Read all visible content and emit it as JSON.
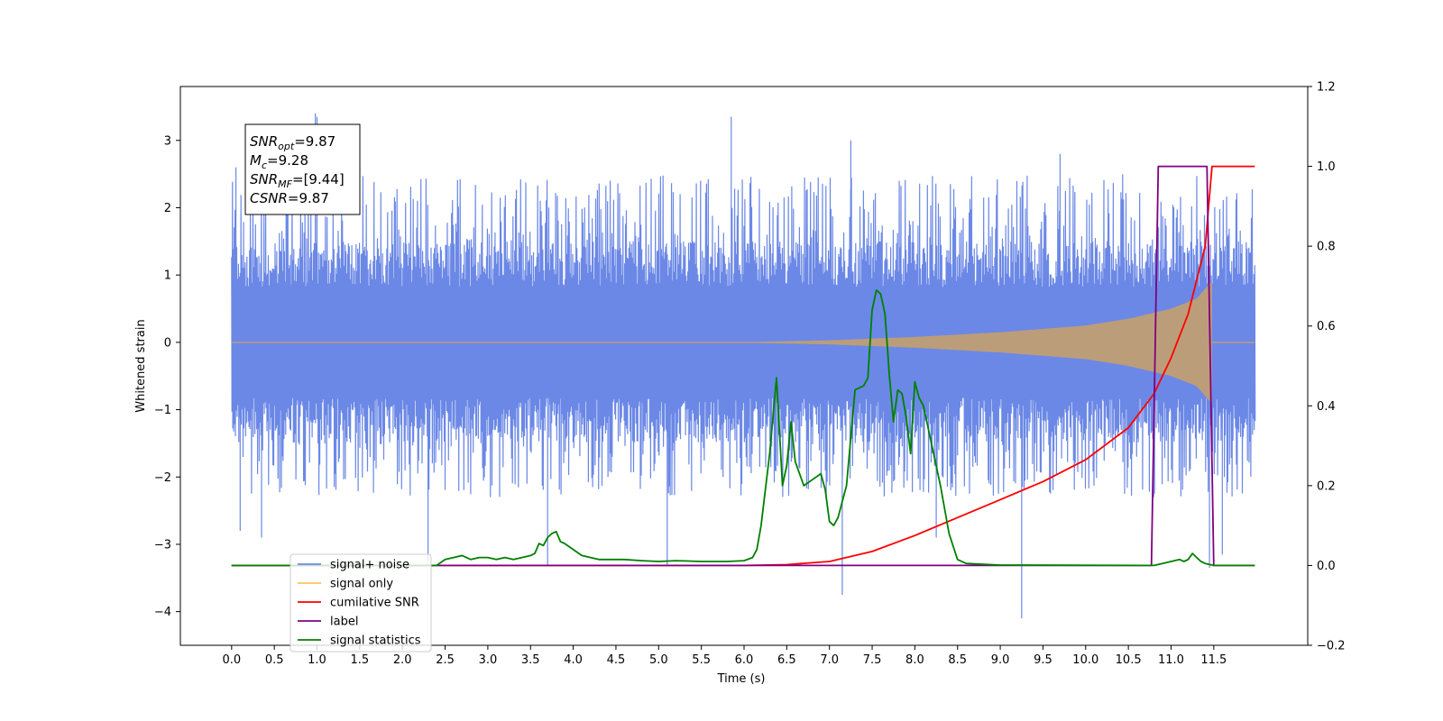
{
  "chart_data": {
    "type": "line",
    "xlabel": "Time (s)",
    "ylabel": "Whitened strain",
    "xlim": [
      -0.6,
      12.6
    ],
    "ylim_left": [
      -4.5,
      3.8
    ],
    "ylim_right": [
      -0.2,
      1.2
    ],
    "x_ticks": [
      0.0,
      0.5,
      1.0,
      1.5,
      2.0,
      2.5,
      3.0,
      3.5,
      4.0,
      4.5,
      5.0,
      5.5,
      6.0,
      6.5,
      7.0,
      7.5,
      8.0,
      8.5,
      9.0,
      9.5,
      10.0,
      10.5,
      11.0,
      11.5
    ],
    "x_tick_labels": [
      "0.0",
      "0.5",
      "1.0",
      "1.5",
      "2.0",
      "2.5",
      "3.0",
      "3.5",
      "4.0",
      "4.5",
      "5.0",
      "5.5",
      "6.0",
      "6.5",
      "7.0",
      "7.5",
      "8.0",
      "8.5",
      "9.0",
      "9.5",
      "10.0",
      "10.5",
      "11.0",
      "11.5"
    ],
    "y_left_ticks": [
      3,
      2,
      1,
      0,
      -1,
      -2,
      -3,
      -4
    ],
    "y_left_tick_labels": [
      "3",
      "2",
      "1",
      "0",
      "−1",
      "−2",
      "−3",
      "−4"
    ],
    "y_right_ticks": [
      1.2,
      1.0,
      0.8,
      0.6,
      0.4,
      0.2,
      0.0,
      -0.2
    ],
    "y_right_tick_labels": [
      "1.2",
      "1.0",
      "0.8",
      "0.6",
      "0.4",
      "0.2",
      "0.0",
      "−0.2"
    ],
    "annotation": {
      "lines": [
        {
          "main": "SNR",
          "sub": "opt",
          "rest": "=9.87"
        },
        {
          "main": "M",
          "sub": "c",
          "rest": "=9.28"
        },
        {
          "main": "SNR",
          "sub": "MF",
          "rest": "=[9.44]"
        },
        {
          "main": "CSNR",
          "sub": "",
          "rest": "=9.87"
        }
      ]
    },
    "legend": {
      "placement": "lower-left",
      "entries": [
        {
          "label": "signal+ noise",
          "color": "#6b88e6"
        },
        {
          "label": "signal only",
          "color": "#ffc266"
        },
        {
          "label": "cumilative SNR",
          "color": "#ff0000"
        },
        {
          "label": "label",
          "color": "#800080"
        },
        {
          "label": "signal statistics",
          "color": "#008000"
        }
      ]
    },
    "series": [
      {
        "name": "signal+ noise",
        "axis": "left",
        "color": "#6b88e6",
        "x_range": [
          0.0,
          11.98
        ],
        "core_amplitude": 1.5,
        "envelope_max": 2.5,
        "envelope_min": -2.3,
        "spikes": [
          [
            0.05,
            2.6
          ],
          [
            0.1,
            -2.8
          ],
          [
            0.35,
            -2.9
          ],
          [
            0.98,
            3.4
          ],
          [
            1.0,
            3.35
          ],
          [
            2.3,
            -3.25
          ],
          [
            3.7,
            -3.3
          ],
          [
            5.1,
            -3.3
          ],
          [
            5.85,
            3.35
          ],
          [
            7.15,
            -3.75
          ],
          [
            7.25,
            3.0
          ],
          [
            8.25,
            -2.9
          ],
          [
            9.25,
            -4.1
          ],
          [
            9.7,
            2.8
          ],
          [
            11.45,
            -3.35
          ],
          [
            11.6,
            -3.15
          ]
        ]
      },
      {
        "name": "signal only",
        "axis": "left",
        "color": "#ffc266",
        "overlap_color": "#bc9d79",
        "chirp_start": 6.2,
        "chirp_end": 11.48,
        "envelope": [
          [
            6.2,
            0.01
          ],
          [
            7.0,
            0.03
          ],
          [
            8.0,
            0.08
          ],
          [
            9.0,
            0.15
          ],
          [
            10.0,
            0.25
          ],
          [
            10.5,
            0.35
          ],
          [
            11.0,
            0.5
          ],
          [
            11.3,
            0.65
          ],
          [
            11.47,
            0.9
          ]
        ]
      },
      {
        "name": "cumilative SNR",
        "axis": "right",
        "color": "#ff0000",
        "points": [
          [
            0.0,
            0.0
          ],
          [
            6.0,
            0.0
          ],
          [
            6.5,
            0.002
          ],
          [
            7.0,
            0.01
          ],
          [
            7.5,
            0.035
          ],
          [
            8.0,
            0.075
          ],
          [
            8.5,
            0.12
          ],
          [
            9.0,
            0.165
          ],
          [
            9.5,
            0.21
          ],
          [
            10.0,
            0.265
          ],
          [
            10.5,
            0.345
          ],
          [
            10.8,
            0.43
          ],
          [
            11.0,
            0.52
          ],
          [
            11.2,
            0.63
          ],
          [
            11.4,
            0.8
          ],
          [
            11.48,
            1.0
          ],
          [
            11.98,
            1.0
          ]
        ]
      },
      {
        "name": "label",
        "axis": "right",
        "color": "#800080",
        "points": [
          [
            0.0,
            0.0
          ],
          [
            10.77,
            0.0
          ],
          [
            10.85,
            1.0
          ],
          [
            11.42,
            1.0
          ],
          [
            11.5,
            0.0
          ],
          [
            11.98,
            0.0
          ]
        ]
      },
      {
        "name": "signal statistics",
        "axis": "right",
        "color": "#008000",
        "points": [
          [
            0.0,
            0.0
          ],
          [
            2.4,
            0.0
          ],
          [
            2.5,
            0.015
          ],
          [
            2.6,
            0.02
          ],
          [
            2.7,
            0.025
          ],
          [
            2.8,
            0.015
          ],
          [
            2.9,
            0.02
          ],
          [
            3.0,
            0.02
          ],
          [
            3.1,
            0.015
          ],
          [
            3.2,
            0.02
          ],
          [
            3.3,
            0.015
          ],
          [
            3.4,
            0.02
          ],
          [
            3.5,
            0.025
          ],
          [
            3.55,
            0.03
          ],
          [
            3.6,
            0.055
          ],
          [
            3.65,
            0.05
          ],
          [
            3.7,
            0.07
          ],
          [
            3.75,
            0.08
          ],
          [
            3.8,
            0.085
          ],
          [
            3.85,
            0.06
          ],
          [
            3.9,
            0.055
          ],
          [
            4.0,
            0.04
          ],
          [
            4.1,
            0.025
          ],
          [
            4.3,
            0.015
          ],
          [
            4.6,
            0.015
          ],
          [
            4.8,
            0.012
          ],
          [
            5.0,
            0.01
          ],
          [
            5.2,
            0.012
          ],
          [
            5.5,
            0.01
          ],
          [
            5.8,
            0.01
          ],
          [
            6.0,
            0.012
          ],
          [
            6.1,
            0.02
          ],
          [
            6.15,
            0.04
          ],
          [
            6.2,
            0.1
          ],
          [
            6.3,
            0.28
          ],
          [
            6.38,
            0.47
          ],
          [
            6.45,
            0.2
          ],
          [
            6.5,
            0.25
          ],
          [
            6.55,
            0.36
          ],
          [
            6.6,
            0.26
          ],
          [
            6.7,
            0.2
          ],
          [
            6.8,
            0.215
          ],
          [
            6.9,
            0.23
          ],
          [
            6.95,
            0.19
          ],
          [
            7.0,
            0.11
          ],
          [
            7.05,
            0.1
          ],
          [
            7.1,
            0.12
          ],
          [
            7.2,
            0.2
          ],
          [
            7.3,
            0.44
          ],
          [
            7.4,
            0.45
          ],
          [
            7.45,
            0.47
          ],
          [
            7.5,
            0.64
          ],
          [
            7.55,
            0.69
          ],
          [
            7.6,
            0.68
          ],
          [
            7.65,
            0.63
          ],
          [
            7.7,
            0.48
          ],
          [
            7.75,
            0.36
          ],
          [
            7.8,
            0.44
          ],
          [
            7.85,
            0.43
          ],
          [
            7.9,
            0.37
          ],
          [
            7.95,
            0.28
          ],
          [
            8.0,
            0.46
          ],
          [
            8.05,
            0.42
          ],
          [
            8.1,
            0.4
          ],
          [
            8.2,
            0.3
          ],
          [
            8.3,
            0.2
          ],
          [
            8.4,
            0.08
          ],
          [
            8.5,
            0.015
          ],
          [
            8.6,
            0.005
          ],
          [
            9.0,
            0.001
          ],
          [
            10.8,
            0.0
          ],
          [
            10.9,
            0.005
          ],
          [
            11.0,
            0.01
          ],
          [
            11.1,
            0.015
          ],
          [
            11.15,
            0.01
          ],
          [
            11.2,
            0.015
          ],
          [
            11.25,
            0.03
          ],
          [
            11.3,
            0.02
          ],
          [
            11.35,
            0.01
          ],
          [
            11.4,
            0.005
          ],
          [
            11.5,
            0.0
          ],
          [
            11.98,
            0.0
          ]
        ]
      }
    ]
  }
}
